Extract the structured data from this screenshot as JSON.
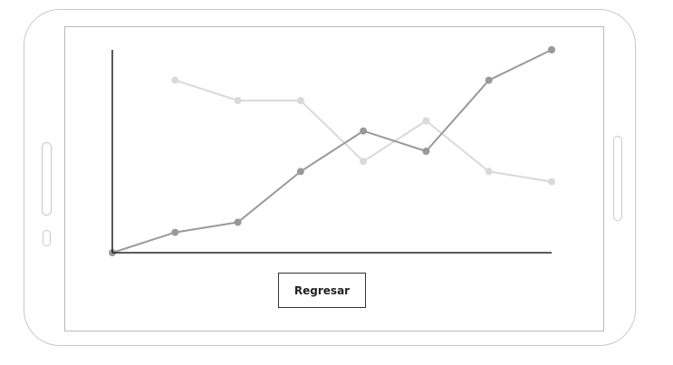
{
  "ui": {
    "back_button_label": "Regresar"
  },
  "colors": {
    "device_border": "#c8c8c8",
    "screen_border": "#b9b9b9",
    "axis": "#222222",
    "series_dark": "#999999",
    "series_light": "#d9d9d9"
  },
  "chart_data": {
    "type": "line",
    "title": "",
    "xlabel": "",
    "ylabel": "",
    "grid": false,
    "legend": "none",
    "x": [
      0,
      1,
      2,
      3,
      4,
      5,
      6,
      7
    ],
    "xlim": [
      0,
      7
    ],
    "ylim": [
      0,
      10
    ],
    "series": [
      {
        "color": "#999999",
        "values": [
          0,
          1,
          1.5,
          4,
          6,
          5,
          8.5,
          10
        ]
      },
      {
        "color": "#d9d9d9",
        "values": [
          null,
          8.5,
          7.5,
          7.5,
          4.5,
          6.5,
          4,
          3.5
        ]
      }
    ]
  }
}
